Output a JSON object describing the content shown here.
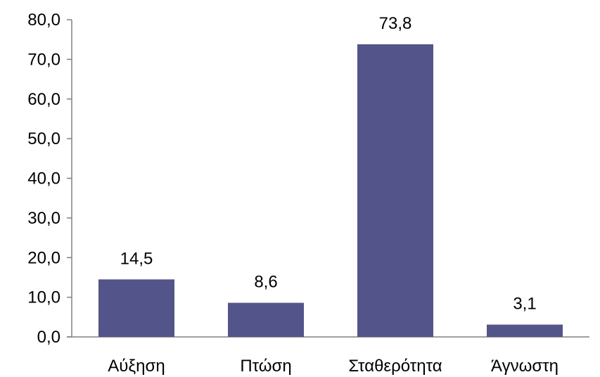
{
  "chart_data": {
    "type": "bar",
    "categories": [
      "Αύξηση",
      "Πτώση",
      "Σταθερότητα",
      "Άγνωστη"
    ],
    "values": [
      14.5,
      8.6,
      73.8,
      3.1
    ],
    "data_labels": [
      "14,5",
      "8,6",
      "73,8",
      "3,1"
    ],
    "ylim": [
      0,
      80
    ],
    "yticks": [
      0,
      10,
      20,
      30,
      40,
      50,
      60,
      70,
      80
    ],
    "ytick_labels": [
      "0,0",
      "10,0",
      "20,0",
      "30,0",
      "40,0",
      "50,0",
      "60,0",
      "70,0",
      "80,0"
    ],
    "grid": false,
    "legend": "none",
    "bar_color": "#535489",
    "axis_color": "#808080"
  }
}
